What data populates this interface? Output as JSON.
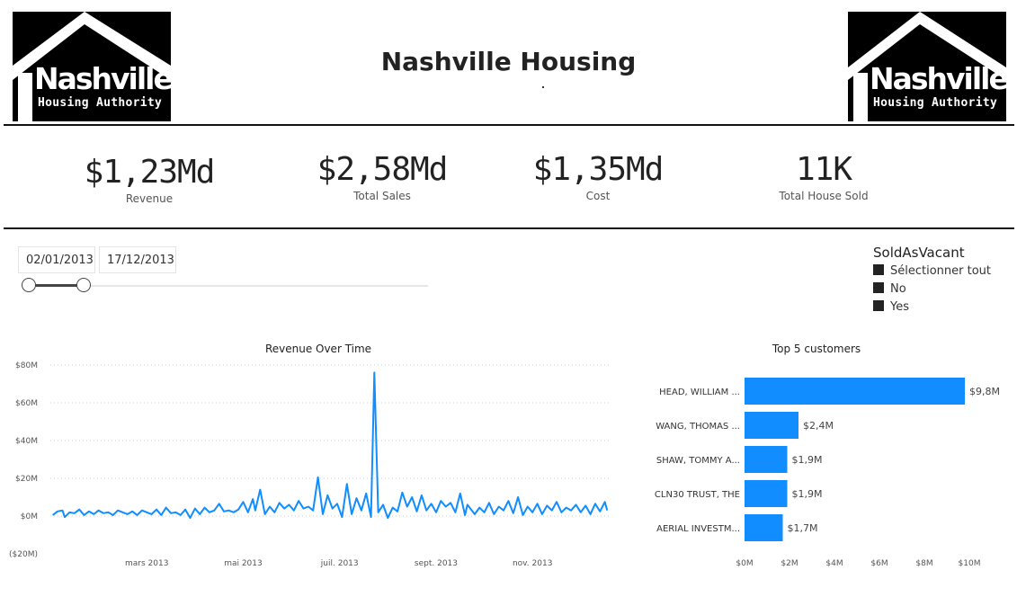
{
  "header": {
    "title": "Nashville Housing",
    "logo": {
      "word": "Nashville",
      "sub": "Housing Authority"
    }
  },
  "kpis": [
    {
      "value": "$1,23Md",
      "label": "Revenue"
    },
    {
      "value": "$2,58Md",
      "label": "Total Sales"
    },
    {
      "value": "$1,35Md",
      "label": "Cost"
    },
    {
      "value": "11K",
      "label": "Total House Sold"
    }
  ],
  "date_slicer": {
    "start": "02/01/2013",
    "end": "17/12/2013"
  },
  "sold_as_vacant": {
    "title": "SoldAsVacant",
    "items": [
      "Sélectionner tout",
      "No",
      "Yes"
    ]
  },
  "colors": {
    "accent": "#118DFF",
    "text": "#222222",
    "grid": "#e5e5e5"
  },
  "chart_data": [
    {
      "type": "line",
      "title": "Revenue Over Time",
      "y_ticks": [
        "$80M",
        "$60M",
        "$40M",
        "$20M",
        "$0M",
        "($20M)"
      ],
      "ylim": [
        -20,
        80
      ],
      "y_unit": "M$",
      "x_ticks": [
        "mars 2013",
        "mai 2013",
        "juil. 2013",
        "sept. 2013",
        "nov. 2013"
      ],
      "x_tick_months": [
        3,
        5,
        7,
        9,
        11
      ],
      "xlim_months": [
        1.0,
        12.6
      ],
      "series": [
        {
          "values": [
            [
              1.05,
              0.5
            ],
            [
              1.15,
              2.5
            ],
            [
              1.25,
              3.0
            ],
            [
              1.3,
              -0.5
            ],
            [
              1.4,
              2.0
            ],
            [
              1.5,
              1.5
            ],
            [
              1.6,
              3.5
            ],
            [
              1.7,
              0.5
            ],
            [
              1.8,
              2.5
            ],
            [
              1.9,
              1.0
            ],
            [
              2.0,
              3.0
            ],
            [
              2.1,
              1.5
            ],
            [
              2.2,
              2.0
            ],
            [
              2.3,
              0.5
            ],
            [
              2.4,
              3.0
            ],
            [
              2.5,
              2.0
            ],
            [
              2.6,
              1.0
            ],
            [
              2.7,
              2.5
            ],
            [
              2.8,
              0.5
            ],
            [
              2.9,
              3.0
            ],
            [
              3.0,
              2.0
            ],
            [
              3.1,
              1.0
            ],
            [
              3.2,
              3.5
            ],
            [
              3.3,
              0.5
            ],
            [
              3.4,
              4.5
            ],
            [
              3.5,
              1.5
            ],
            [
              3.6,
              2.0
            ],
            [
              3.7,
              0.5
            ],
            [
              3.8,
              3.5
            ],
            [
              3.9,
              -1.0
            ],
            [
              4.0,
              4.0
            ],
            [
              4.1,
              1.0
            ],
            [
              4.2,
              4.5
            ],
            [
              4.3,
              2.0
            ],
            [
              4.4,
              3.0
            ],
            [
              4.5,
              6.5
            ],
            [
              4.6,
              2.5
            ],
            [
              4.7,
              3.0
            ],
            [
              4.8,
              2.0
            ],
            [
              4.9,
              3.5
            ],
            [
              5.0,
              7.5
            ],
            [
              5.1,
              2.0
            ],
            [
              5.2,
              9.0
            ],
            [
              5.25,
              3.0
            ],
            [
              5.35,
              14.0
            ],
            [
              5.45,
              1.0
            ],
            [
              5.55,
              5.0
            ],
            [
              5.65,
              2.0
            ],
            [
              5.75,
              7.0
            ],
            [
              5.85,
              4.0
            ],
            [
              5.95,
              6.0
            ],
            [
              6.05,
              3.0
            ],
            [
              6.15,
              8.0
            ],
            [
              6.25,
              4.0
            ],
            [
              6.35,
              5.0
            ],
            [
              6.45,
              3.0
            ],
            [
              6.55,
              20.5
            ],
            [
              6.65,
              1.0
            ],
            [
              6.75,
              11.0
            ],
            [
              6.85,
              4.0
            ],
            [
              6.95,
              6.5
            ],
            [
              7.05,
              -0.5
            ],
            [
              7.15,
              17.0
            ],
            [
              7.25,
              1.0
            ],
            [
              7.35,
              9.5
            ],
            [
              7.45,
              3.0
            ],
            [
              7.55,
              12.0
            ],
            [
              7.65,
              -0.5
            ],
            [
              7.72,
              76.0
            ],
            [
              7.8,
              2.0
            ],
            [
              7.9,
              6.0
            ],
            [
              8.0,
              -1.0
            ],
            [
              8.1,
              4.5
            ],
            [
              8.2,
              2.5
            ],
            [
              8.3,
              12.5
            ],
            [
              8.4,
              5.0
            ],
            [
              8.5,
              10.0
            ],
            [
              8.6,
              2.5
            ],
            [
              8.7,
              11.0
            ],
            [
              8.8,
              3.0
            ],
            [
              8.9,
              6.5
            ],
            [
              9.0,
              2.0
            ],
            [
              9.1,
              8.0
            ],
            [
              9.2,
              5.0
            ],
            [
              9.3,
              7.0
            ],
            [
              9.4,
              2.0
            ],
            [
              9.5,
              12.0
            ],
            [
              9.6,
              0.5
            ],
            [
              9.65,
              6.0
            ],
            [
              9.8,
              1.0
            ],
            [
              9.9,
              4.5
            ],
            [
              10.0,
              2.0
            ],
            [
              10.1,
              7.0
            ],
            [
              10.2,
              1.0
            ],
            [
              10.3,
              5.0
            ],
            [
              10.4,
              3.0
            ],
            [
              10.5,
              8.0
            ],
            [
              10.6,
              1.5
            ],
            [
              10.7,
              10.0
            ],
            [
              10.8,
              0.5
            ],
            [
              10.9,
              5.0
            ],
            [
              11.0,
              2.0
            ],
            [
              11.1,
              6.5
            ],
            [
              11.2,
              1.0
            ],
            [
              11.3,
              5.5
            ],
            [
              11.4,
              3.0
            ],
            [
              11.5,
              7.5
            ],
            [
              11.6,
              2.0
            ],
            [
              11.7,
              4.5
            ],
            [
              11.8,
              3.0
            ],
            [
              11.9,
              6.0
            ],
            [
              12.0,
              2.0
            ],
            [
              12.1,
              5.5
            ],
            [
              12.2,
              1.0
            ],
            [
              12.3,
              6.5
            ],
            [
              12.4,
              2.5
            ],
            [
              12.5,
              7.5
            ],
            [
              12.55,
              3.0
            ]
          ]
        }
      ]
    },
    {
      "type": "bar",
      "orientation": "horizontal",
      "title": "Top 5 customers",
      "categories": [
        "HEAD, WILLIAM ...",
        "WANG, THOMAS ...",
        "SHAW, TOMMY A...",
        "CLN30 TRUST, THE",
        "AERIAL INVESTM..."
      ],
      "values": [
        9.8,
        2.4,
        1.9,
        1.9,
        1.7
      ],
      "value_labels": [
        "$9,8M",
        "$2,4M",
        "$1,9M",
        "$1,9M",
        "$1,7M"
      ],
      "x_ticks": [
        "$0M",
        "$2M",
        "$4M",
        "$6M",
        "$8M",
        "$10M"
      ],
      "xlim": [
        0,
        10
      ]
    }
  ]
}
